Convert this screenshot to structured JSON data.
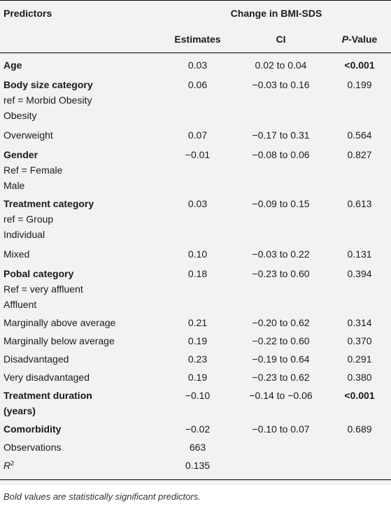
{
  "header": {
    "predictors": "Predictors",
    "group": "Change in BMI-SDS",
    "estimates": "Estimates",
    "ci": "CI",
    "p_italic": "P",
    "p_rest": "-Value"
  },
  "rows": {
    "age": {
      "label": "Age",
      "est": "0.03",
      "ci": "0.02 to 0.04",
      "p": "<0.001"
    },
    "body": {
      "label": "Body size category",
      "est": "0.06",
      "ci": "−0.03 to 0.16",
      "p": "0.199",
      "ref": "ref = Morbid Obesity",
      "sub": "Obesity"
    },
    "overweight": {
      "label": "Overweight",
      "est": "0.07",
      "ci": "−0.17 to 0.31",
      "p": "0.564"
    },
    "gender": {
      "label": "Gender",
      "est": "−0.01",
      "ci": "−0.08 to 0.06",
      "p": "0.827",
      "ref": "Ref = Female",
      "sub": "Male"
    },
    "treat": {
      "label": "Treatment category",
      "est": "0.03",
      "ci": "−0.09 to 0.15",
      "p": "0.613",
      "ref": "ref = Group",
      "sub": "Individual"
    },
    "mixed": {
      "label": "Mixed",
      "est": "0.10",
      "ci": "−0.03 to 0.22",
      "p": "0.131"
    },
    "pobal": {
      "label": "Pobal category",
      "est": "0.18",
      "ci": "−0.23 to 0.60",
      "p": "0.394",
      "ref": "Ref = very affluent",
      "sub": "Affluent"
    },
    "mabove": {
      "label": "Marginally above average",
      "est": "0.21",
      "ci": "−0.20 to 0.62",
      "p": "0.314"
    },
    "mbelow": {
      "label": "Marginally below average",
      "est": "0.19",
      "ci": "−0.22 to 0.60",
      "p": "0.370"
    },
    "disadv": {
      "label": "Disadvantaged",
      "est": "0.23",
      "ci": "−0.19 to 0.64",
      "p": "0.291"
    },
    "vdisadv": {
      "label": "Very disadvantaged",
      "est": "0.19",
      "ci": "−0.23 to 0.62",
      "p": "0.380"
    },
    "duration": {
      "label": "Treatment duration",
      "label2": "(years)",
      "est": "−0.10",
      "ci": "−0.14 to −0.06",
      "p": "<0.001"
    },
    "comorb": {
      "label": "Comorbidity",
      "est": "−0.02",
      "ci": "−0.10 to 0.07",
      "p": "0.689"
    },
    "obs": {
      "label": "Observations",
      "est": "663"
    },
    "r2": {
      "label": "R",
      "sup": "2",
      "est": "0.135"
    }
  },
  "footnote": "Bold values are statistically significant predictors."
}
